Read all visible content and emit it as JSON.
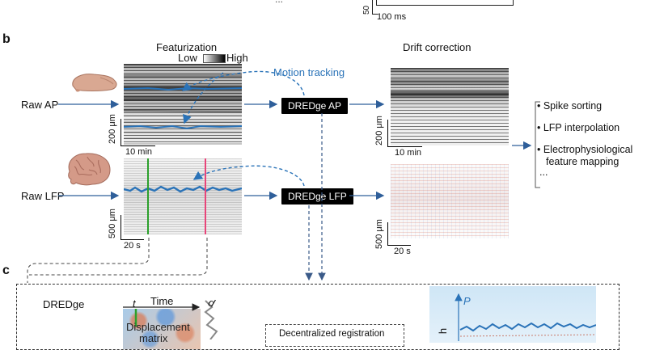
{
  "top": {
    "label_partial": "...",
    "scale_y": "50",
    "scale_x": "100 ms"
  },
  "panel_b": {
    "letter": "b",
    "featurization_title": "Featurization",
    "colorbar_low": "Low",
    "colorbar_high": "High",
    "motion_tracking": "Motion tracking",
    "raw_ap": "Raw AP",
    "raw_lfp": "Raw LFP",
    "dredge_ap": "DREDge AP",
    "dredge_lfp": "DREDge LFP",
    "drift_title": "Drift correction",
    "ap_scale_y": "200 μm",
    "ap_scale_x": "10 min",
    "ap_out_scale_y": "200 μm",
    "ap_out_scale_x": "10 min",
    "lfp_scale_y": "500 μm",
    "lfp_scale_x": "20 s",
    "lfp_out_scale_y": "500 μm",
    "lfp_out_scale_x": "20 s",
    "outputs": [
      "• Spike sorting",
      "• LFP interpolation",
      "• Electrophysiological",
      "feature mapping",
      "..."
    ]
  },
  "panel_c": {
    "letter": "c",
    "dredge": "DREDge",
    "time_label": "Time",
    "t_label": "t",
    "d_label": "d",
    "disp_line1": "Displacement",
    "disp_line2": "matrix",
    "decentralized": "Decentralized registration",
    "p_label": "P",
    "depth_partial": "h"
  },
  "colors": {
    "blue": "#2a73b8",
    "green": "#2ca02c",
    "pink": "#e8457a",
    "arrow": "#2f5f9a"
  }
}
